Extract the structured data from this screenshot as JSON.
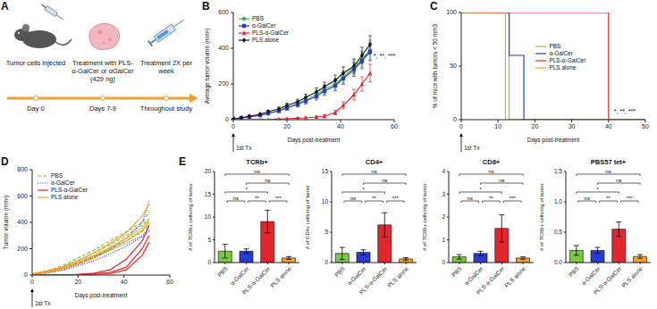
{
  "diagram": {
    "panel": "A",
    "steps": [
      {
        "text": "Tumor cells injected",
        "time": "Day 0"
      },
      {
        "text": "Treatment with PLS-α-GalCer or αGalCer (429 ng)",
        "time": "Days 7-9"
      },
      {
        "text": "Treatment 2X per week",
        "time": "Throughout study"
      }
    ]
  },
  "chart_data": [
    {
      "panel": "B",
      "type": "line",
      "x_label": "Days post-treatment",
      "y_label": "Average tumor volume (mm³)",
      "x": [
        0,
        3,
        6,
        10,
        13,
        17,
        20,
        24,
        27,
        31,
        34,
        38,
        41,
        45,
        48,
        51
      ],
      "xlim": [
        0,
        60
      ],
      "xticks": [
        0,
        20,
        40,
        60
      ],
      "ylim": [
        0,
        600
      ],
      "yticks": [
        0,
        200,
        400,
        600
      ],
      "legend": "upper left",
      "annotations": [
        "1st Tx",
        "*, **, ***"
      ],
      "series": [
        {
          "name": "PBS",
          "color": "#4caf50",
          "marker": "circle",
          "values": [
            5,
            10,
            15,
            25,
            35,
            50,
            70,
            90,
            110,
            140,
            170,
            200,
            240,
            290,
            340,
            390
          ],
          "errors": [
            2,
            3,
            4,
            6,
            8,
            10,
            12,
            15,
            18,
            20,
            25,
            30,
            35,
            40,
            45,
            55
          ]
        },
        {
          "name": "α-GalCer",
          "color": "#2a3bd1",
          "marker": "square",
          "values": [
            5,
            10,
            15,
            25,
            35,
            50,
            65,
            85,
            105,
            130,
            160,
            190,
            230,
            280,
            330,
            380
          ],
          "errors": [
            2,
            3,
            4,
            5,
            7,
            10,
            12,
            14,
            17,
            20,
            24,
            28,
            32,
            38,
            45,
            50
          ]
        },
        {
          "name": "PLS-α-GalCer",
          "color": "#e3262b",
          "marker": "triangle",
          "values": [
            0,
            0,
            0,
            0,
            0,
            3,
            5,
            8,
            10,
            15,
            20,
            40,
            80,
            140,
            200,
            260
          ],
          "errors": [
            0,
            0,
            0,
            0,
            0,
            2,
            3,
            4,
            5,
            6,
            8,
            12,
            20,
            30,
            40,
            50
          ]
        },
        {
          "name": "PLS alone",
          "color": "#1a1a1a",
          "marker": "diamond",
          "values": [
            5,
            10,
            20,
            30,
            45,
            60,
            80,
            100,
            125,
            155,
            185,
            220,
            260,
            300,
            360,
            420
          ],
          "errors": [
            2,
            3,
            4,
            6,
            8,
            10,
            12,
            15,
            18,
            22,
            25,
            30,
            35,
            40,
            45,
            50
          ]
        }
      ]
    },
    {
      "panel": "C",
      "type": "line",
      "line_style": "step",
      "x_label": "Days post-treatment",
      "y_label": "% of mice with tumors < 50 mm3",
      "x": [
        0,
        12,
        13,
        17,
        40,
        50
      ],
      "xlim": [
        0,
        50
      ],
      "xticks": [
        0,
        10,
        20,
        30,
        40,
        50
      ],
      "ylim": [
        0,
        100
      ],
      "yticks": [
        0,
        50,
        100
      ],
      "legend": "center",
      "annotations": [
        "1st Tx",
        "*, **, ***"
      ],
      "series": [
        {
          "name": "PBS",
          "color": "#7ac943",
          "values": [
            100,
            100,
            0,
            0,
            0,
            0
          ]
        },
        {
          "name": "α-GalCer",
          "color": "#2a3bd1",
          "values": [
            100,
            100,
            60,
            0,
            0,
            0
          ]
        },
        {
          "name": "PLS-α-GalCer",
          "color": "#e3262b",
          "values": [
            100,
            100,
            100,
            100,
            0,
            0
          ]
        },
        {
          "name": "PLS alone",
          "color": "#f7a325",
          "values": [
            100,
            0,
            0,
            0,
            0,
            0
          ]
        }
      ]
    },
    {
      "panel": "D",
      "type": "line",
      "x_label": "Days post-treatment",
      "y_label": "Tumor volume (mm³)",
      "x": [
        0,
        6,
        13,
        20,
        27,
        34,
        41,
        48,
        51
      ],
      "xlim": [
        0,
        60
      ],
      "xticks": [
        0,
        20,
        40,
        60
      ],
      "ylim": [
        0,
        800
      ],
      "yticks": [
        0,
        200,
        400,
        600,
        800
      ],
      "legend": "upper left",
      "annotations": [
        "1st Tx"
      ],
      "series": [
        {
          "name": "PBS",
          "color": "#7ac943",
          "line_style": "dashed",
          "lines": [
            [
              10,
              30,
              60,
              110,
              170,
              230,
              300,
              380,
              430
            ],
            [
              5,
              20,
              50,
              90,
              140,
              200,
              260,
              330,
              380
            ],
            [
              8,
              25,
              70,
              130,
              190,
              260,
              330,
              400,
              480
            ]
          ]
        },
        {
          "name": "α-GalCer",
          "color": "#2a3bd1",
          "line_style": "dotted",
          "lines": [
            [
              5,
              15,
              40,
              80,
              130,
              200,
              280,
              400,
              560
            ],
            [
              8,
              20,
              50,
              90,
              140,
              190,
              240,
              300,
              350
            ],
            [
              5,
              15,
              35,
              70,
              110,
              160,
              220,
              290,
              330
            ]
          ]
        },
        {
          "name": "PLS-α-GalCer",
          "color": "#e3262b",
          "line_style": "solid",
          "lines": [
            [
              0,
              0,
              0,
              5,
              10,
              20,
              60,
              200,
              300
            ],
            [
              0,
              0,
              2,
              5,
              15,
              40,
              120,
              260,
              380
            ],
            [
              0,
              0,
              0,
              0,
              5,
              10,
              40,
              150,
              250
            ]
          ]
        },
        {
          "name": "PLS alone",
          "color": "#f7a325",
          "line_style": "solid",
          "lines": [
            [
              10,
              30,
              60,
              110,
              170,
              240,
              320,
              450,
              540
            ],
            [
              8,
              25,
              55,
              100,
              150,
              210,
              280,
              360,
              420
            ],
            [
              6,
              20,
              45,
              85,
              130,
              190,
              260,
              340,
              400
            ]
          ]
        }
      ]
    },
    {
      "panel": "E",
      "type": "bar",
      "title": "TCRb+",
      "y_label": "# of TCRb+ cells/mg of tumor",
      "categories": [
        "PBS",
        "α-GalCer",
        "PLS-α-GalCer",
        "PLS alone"
      ],
      "colors": [
        "#7ac943",
        "#2a3bd1",
        "#e3262b",
        "#f7a325"
      ],
      "values": [
        2.5,
        2.5,
        9,
        1
      ],
      "errors": [
        1.5,
        0.5,
        2.5,
        0.3
      ],
      "ylim": [
        0,
        20
      ],
      "yticks": [
        0,
        5,
        10,
        15,
        20
      ],
      "comparisons": [
        {
          "pair": [
            "PBS",
            "α-GalCer"
          ],
          "label": "ns"
        },
        {
          "pair": [
            "α-GalCer",
            "PLS-α-GalCer"
          ],
          "label": "**"
        },
        {
          "pair": [
            "PLS-α-GalCer",
            "PLS alone"
          ],
          "label": "***"
        },
        {
          "pair": [
            "PBS",
            "PLS-α-GalCer"
          ],
          "label": "*"
        },
        {
          "pair": [
            "α-GalCer",
            "PLS alone"
          ],
          "label": "ns"
        },
        {
          "pair": [
            "PBS",
            "PLS alone"
          ],
          "label": "ns"
        }
      ]
    },
    {
      "type": "bar",
      "title": "CD4+",
      "y_label": "# of CD4+ cells/mg of tumor",
      "categories": [
        "PBS",
        "α-GalCer",
        "PLS-α-GalCer",
        "PLS alone"
      ],
      "colors": [
        "#7ac943",
        "#2a3bd1",
        "#e3262b",
        "#f7a325"
      ],
      "values": [
        1.5,
        1.7,
        6.2,
        0.6
      ],
      "errors": [
        1,
        0.4,
        2,
        0.2
      ],
      "ylim": [
        0,
        15
      ],
      "yticks": [
        0,
        5,
        10,
        15
      ],
      "comparisons": [
        {
          "pair": [
            "PBS",
            "α-GalCer"
          ],
          "label": "ns"
        },
        {
          "pair": [
            "α-GalCer",
            "PLS-α-GalCer"
          ],
          "label": "**"
        },
        {
          "pair": [
            "PLS-α-GalCer",
            "PLS alone"
          ],
          "label": "***"
        },
        {
          "pair": [
            "PBS",
            "PLS-α-GalCer"
          ],
          "label": "*"
        },
        {
          "pair": [
            "α-GalCer",
            "PLS alone"
          ],
          "label": "ns"
        },
        {
          "pair": [
            "PBS",
            "PLS alone"
          ],
          "label": "ns"
        }
      ]
    },
    {
      "type": "bar",
      "title": "CD8+",
      "y_label": "# of TCRb+ cells/mg of tumor",
      "categories": [
        "PBS",
        "α-GalCer",
        "PLS-α-GalCer",
        "PLS alone"
      ],
      "colors": [
        "#7ac943",
        "#2a3bd1",
        "#e3262b",
        "#f7a325"
      ],
      "values": [
        0.25,
        0.4,
        1.5,
        0.2
      ],
      "errors": [
        0.1,
        0.1,
        0.6,
        0.05
      ],
      "ylim": [
        0,
        4
      ],
      "yticks": [
        0,
        1,
        2,
        3,
        4
      ],
      "comparisons": [
        {
          "pair": [
            "PBS",
            "α-GalCer"
          ],
          "label": "ns"
        },
        {
          "pair": [
            "α-GalCer",
            "PLS-α-GalCer"
          ],
          "label": "**"
        },
        {
          "pair": [
            "PLS-α-GalCer",
            "PLS alone"
          ],
          "label": "***"
        },
        {
          "pair": [
            "PBS",
            "PLS-α-GalCer"
          ],
          "label": "*"
        },
        {
          "pair": [
            "α-GalCer",
            "PLS alone"
          ],
          "label": "ns"
        },
        {
          "pair": [
            "PBS",
            "PLS alone"
          ],
          "label": "ns"
        }
      ]
    },
    {
      "type": "bar",
      "title": "PBS57 tet+",
      "y_label": "# of TCRb+ cells/mg of tumor",
      "categories": [
        "PBS",
        "α-GalCer",
        "PLS-α-GalCer",
        "PLS alone"
      ],
      "colors": [
        "#7ac943",
        "#2a3bd1",
        "#e3262b",
        "#f7a325"
      ],
      "values": [
        0.2,
        0.2,
        0.55,
        0.1
      ],
      "errors": [
        0.08,
        0.05,
        0.12,
        0.03
      ],
      "ylim": [
        0,
        1.5
      ],
      "yticks": [
        {
          "value": 0,
          "label": "0.0"
        },
        {
          "value": 0.5,
          "label": "0.5"
        },
        {
          "value": 1,
          "label": "1.0"
        },
        {
          "value": 1.5,
          "label": "1.5"
        }
      ],
      "comparisons": [
        {
          "pair": [
            "PBS",
            "α-GalCer"
          ],
          "label": "ns"
        },
        {
          "pair": [
            "α-GalCer",
            "PLS-α-GalCer"
          ],
          "label": "**"
        },
        {
          "pair": [
            "PLS-α-GalCer",
            "PLS alone"
          ],
          "label": "***"
        },
        {
          "pair": [
            "PBS",
            "PLS-α-GalCer"
          ],
          "label": "*"
        },
        {
          "pair": [
            "α-GalCer",
            "PLS alone"
          ],
          "label": "ns"
        },
        {
          "pair": [
            "PBS",
            "PLS alone"
          ],
          "label": "ns"
        }
      ]
    }
  ]
}
